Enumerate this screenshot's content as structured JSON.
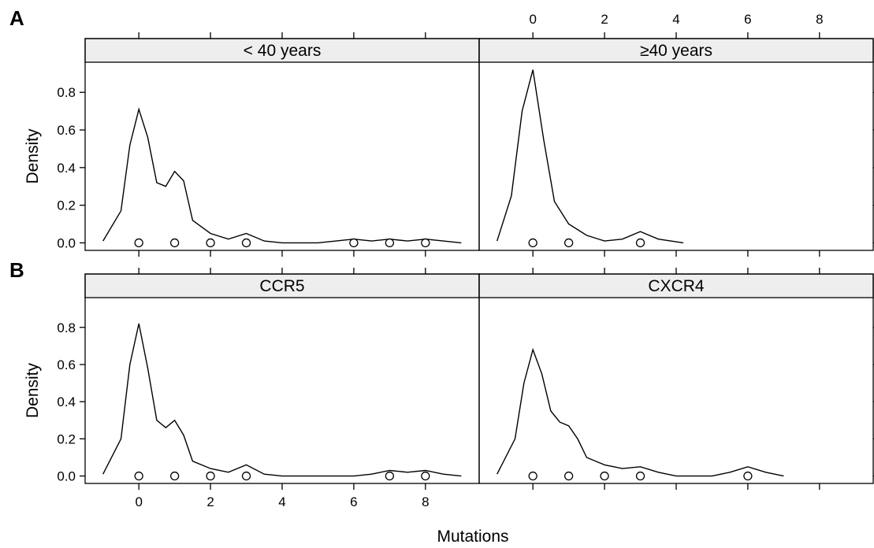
{
  "figure": {
    "xlabel": "Mutations",
    "ylabel": "Density"
  },
  "chart_data": [
    {
      "type": "density",
      "panel_label": "A",
      "panels": [
        {
          "strip": "< 40 years",
          "observations": [
            0,
            1,
            2,
            3,
            6,
            7,
            8
          ],
          "density": {
            "x": [
              -1,
              -0.5,
              -0.25,
              0,
              0.25,
              0.5,
              0.75,
              1,
              1.25,
              1.5,
              2,
              2.5,
              3,
              3.5,
              4,
              5,
              6,
              6.5,
              7,
              7.5,
              8,
              8.5,
              9
            ],
            "y": [
              0.01,
              0.17,
              0.52,
              0.71,
              0.56,
              0.32,
              0.3,
              0.38,
              0.33,
              0.12,
              0.05,
              0.02,
              0.05,
              0.01,
              0.0,
              0.0,
              0.02,
              0.01,
              0.02,
              0.01,
              0.02,
              0.01,
              0.0
            ]
          }
        },
        {
          "strip": "≥40 years",
          "observations": [
            0,
            1,
            3
          ],
          "density": {
            "x": [
              -1,
              -0.6,
              -0.3,
              0,
              0.3,
              0.6,
              1,
              1.5,
              2,
              2.5,
              3,
              3.5,
              4.2
            ],
            "y": [
              0.01,
              0.25,
              0.7,
              0.92,
              0.55,
              0.22,
              0.1,
              0.04,
              0.01,
              0.02,
              0.06,
              0.02,
              0.0
            ]
          }
        }
      ],
      "x_ticks": [
        0,
        2,
        4,
        6,
        8
      ],
      "xlim": [
        -1.5,
        9.5
      ],
      "y_ticks": [
        "0.0",
        "0.2",
        "0.4",
        "0.6",
        "0.8"
      ],
      "ylim": [
        -0.04,
        0.96
      ]
    },
    {
      "type": "density",
      "panel_label": "B",
      "panels": [
        {
          "strip": "CCR5",
          "observations": [
            0,
            1,
            2,
            3,
            7,
            8
          ],
          "density": {
            "x": [
              -1,
              -0.5,
              -0.25,
              0,
              0.25,
              0.5,
              0.75,
              1,
              1.25,
              1.5,
              2,
              2.5,
              3,
              3.5,
              4,
              5,
              6,
              6.5,
              7,
              7.5,
              8,
              8.5,
              9
            ],
            "y": [
              0.01,
              0.2,
              0.6,
              0.82,
              0.58,
              0.3,
              0.26,
              0.3,
              0.22,
              0.08,
              0.04,
              0.02,
              0.06,
              0.01,
              0.0,
              0.0,
              0.0,
              0.01,
              0.03,
              0.02,
              0.03,
              0.01,
              0.0
            ]
          }
        },
        {
          "strip": "CXCR4",
          "observations": [
            0,
            1,
            2,
            3,
            6
          ],
          "density": {
            "x": [
              -1,
              -0.5,
              -0.25,
              0,
              0.25,
              0.5,
              0.75,
              1,
              1.25,
              1.5,
              2,
              2.5,
              3,
              3.5,
              4,
              5,
              5.5,
              6,
              6.5,
              7
            ],
            "y": [
              0.01,
              0.2,
              0.5,
              0.68,
              0.55,
              0.35,
              0.29,
              0.27,
              0.2,
              0.1,
              0.06,
              0.04,
              0.05,
              0.02,
              0.0,
              0.0,
              0.02,
              0.05,
              0.02,
              0.0
            ]
          }
        }
      ],
      "x_ticks": [
        0,
        2,
        4,
        6,
        8
      ],
      "xlim": [
        -1.5,
        9.5
      ],
      "y_ticks": [
        "0.0",
        "0.2",
        "0.4",
        "0.6",
        "0.8"
      ],
      "ylim": [
        -0.04,
        0.96
      ]
    }
  ]
}
